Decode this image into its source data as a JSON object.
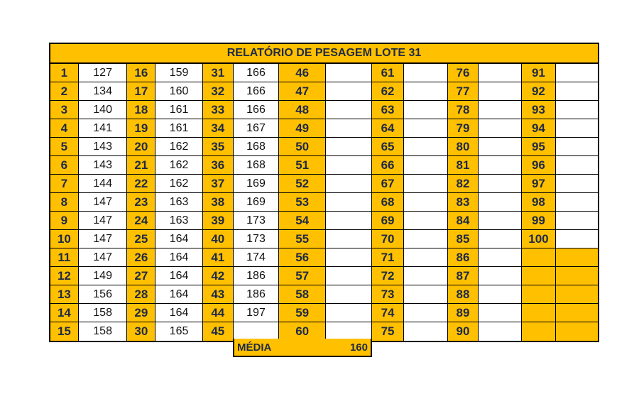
{
  "title": "RELATÓRIO DE PESAGEM LOTE 31",
  "colors": {
    "header": "#FFC000",
    "text": "#1F2A44"
  },
  "columns": [
    {
      "start": 1,
      "values": [
        "127",
        "134",
        "140",
        "141",
        "143",
        "143",
        "144",
        "147",
        "147",
        "147",
        "147",
        "149",
        "156",
        "158",
        "158"
      ]
    },
    {
      "start": 16,
      "values": [
        "159",
        "160",
        "161",
        "161",
        "162",
        "162",
        "162",
        "163",
        "163",
        "164",
        "164",
        "164",
        "164",
        "164",
        "165"
      ]
    },
    {
      "start": 31,
      "values": [
        "166",
        "166",
        "166",
        "167",
        "168",
        "168",
        "169",
        "169",
        "173",
        "173",
        "174",
        "186",
        "186",
        "197",
        ""
      ]
    },
    {
      "start": 46,
      "values": [
        "",
        "",
        "",
        "",
        "",
        "",
        "",
        "",
        "",
        "",
        "",
        "",
        "",
        "",
        ""
      ]
    },
    {
      "start": 61,
      "values": [
        "",
        "",
        "",
        "",
        "",
        "",
        "",
        "",
        "",
        "",
        "",
        "",
        "",
        "",
        ""
      ]
    },
    {
      "start": 76,
      "values": [
        "",
        "",
        "",
        "",
        "",
        "",
        "",
        "",
        "",
        "",
        "",
        "",
        "",
        "",
        ""
      ]
    },
    {
      "start": 91,
      "values": [
        "",
        "",
        "",
        "",
        "",
        "",
        "",
        "",
        "",
        "",
        "",
        "",
        "",
        "",
        ""
      ]
    }
  ],
  "summary": {
    "label": "MÉDIA",
    "value": "160"
  }
}
